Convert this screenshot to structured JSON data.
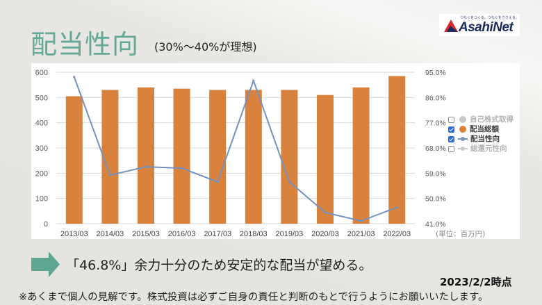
{
  "logo": {
    "tagline": "つなぐをつくる。つなぐをささえる。",
    "name": "AsahiNet",
    "icon": "asahinet-mountain-icon"
  },
  "header": {
    "title": "配当性向",
    "subtitle": "(30%〜40%が理想)"
  },
  "chart_data": {
    "type": "bar",
    "categories": [
      "2013/03",
      "2014/03",
      "2015/03",
      "2016/03",
      "2017/03",
      "2018/03",
      "2019/03",
      "2020/03",
      "2021/03",
      "2022/03"
    ],
    "series": [
      {
        "name": "配当総額",
        "type": "bar",
        "axis": "left",
        "color": "#d9823e",
        "values": [
          505,
          530,
          540,
          535,
          530,
          530,
          530,
          510,
          540,
          585
        ]
      },
      {
        "name": "配当性向",
        "type": "line",
        "axis": "right",
        "color": "#7391bf",
        "values": [
          93.3,
          58.3,
          61.3,
          60.8,
          55.9,
          92.0,
          55.9,
          45.0,
          42.0,
          46.8
        ]
      }
    ],
    "y_left": {
      "range": [
        0,
        600
      ],
      "ticks": [
        0,
        100,
        200,
        300,
        400,
        500,
        600
      ]
    },
    "y_right": {
      "range": [
        41,
        95
      ],
      "ticks": [
        "41.0%",
        "50.0%",
        "59.0%",
        "68.0%",
        "77.0%",
        "86.0%",
        "95.0%"
      ]
    },
    "unit_label": "(単位：百万円)",
    "grid": true,
    "legend": {
      "position": "right",
      "items": [
        {
          "label": "自己株式取得",
          "checked": false,
          "marker": "circle",
          "color": "#c9c9c9"
        },
        {
          "label": "配当総額",
          "checked": true,
          "marker": "circle",
          "color": "#d9823e"
        },
        {
          "label": "配当性向",
          "checked": true,
          "marker": "line",
          "color": "#7391bf"
        },
        {
          "label": "総還元性向",
          "checked": false,
          "marker": "line",
          "color": "#c9c9c9"
        }
      ]
    }
  },
  "conclusion": {
    "icon": "right-arrow-icon",
    "text": "「46.8%」余力十分のため安定的な配当が望める。",
    "date": "2023/2/2時点"
  },
  "footnote": "※あくまで個人の見解です。株式投資は必ずご自身の責任と判断のもとで行うようにお願いいたします。",
  "colors": {
    "accent": "#64a897",
    "bar": "#d9823e",
    "line": "#7391bf",
    "logo_navy": "#1b2a5c",
    "logo_red": "#d62a2f"
  }
}
